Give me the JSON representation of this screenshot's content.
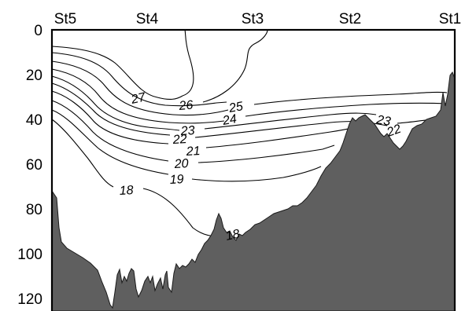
{
  "chart_data": {
    "type": "contour",
    "stations": [
      "St5",
      "St4",
      "St3",
      "St2",
      "St1"
    ],
    "y_ticks": [
      "0",
      "20",
      "40",
      "60",
      "80",
      "100",
      "120"
    ],
    "y_range": [
      0,
      125
    ],
    "y_inverted": true,
    "contour_levels": [
      18,
      19,
      20,
      21,
      22,
      23,
      24,
      25,
      26,
      27
    ],
    "contour_labels": [
      "27",
      "26",
      "25",
      "24",
      "23",
      "22",
      "21",
      "20",
      "19",
      "18",
      "23",
      "22",
      "18"
    ],
    "bathymetry_color": "#5f5f5f",
    "line_color": "#000000"
  }
}
